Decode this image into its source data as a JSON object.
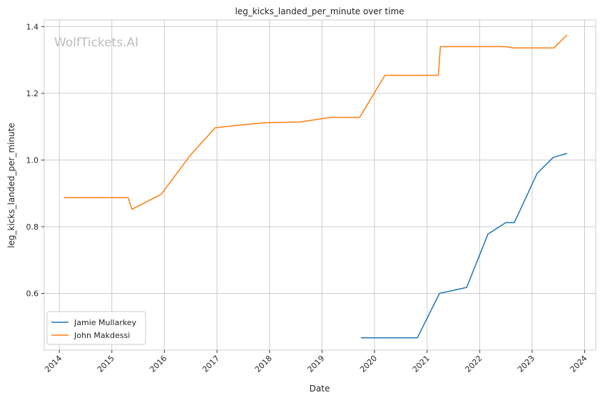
{
  "chart_data": {
    "type": "line",
    "title": "leg_kicks_landed_per_minute over time",
    "xlabel": "Date",
    "ylabel": "leg_kicks_landed_per_minute",
    "watermark": "WolfTickets.AI",
    "x_ticks": [
      "2014",
      "2015",
      "2016",
      "2017",
      "2018",
      "2019",
      "2020",
      "2021",
      "2022",
      "2023",
      "2024"
    ],
    "y_ticks": [
      "0.6",
      "0.8",
      "1.0",
      "1.2",
      "1.4"
    ],
    "xlim": [
      "2013-09-18",
      "2024-03-18"
    ],
    "ylim": [
      0.43,
      1.42
    ],
    "grid": true,
    "legend_position": "lower-left",
    "series": [
      {
        "name": "Jamie Mullarkey",
        "color": "#1f77b4",
        "points": [
          [
            "2019-09-28",
            0.467
          ],
          [
            "2020-10-25",
            0.467
          ],
          [
            "2021-03-28",
            0.6
          ],
          [
            "2021-10-03",
            0.618
          ],
          [
            "2022-02-28",
            0.778
          ],
          [
            "2022-07-01",
            0.812
          ],
          [
            "2022-08-30",
            0.812
          ],
          [
            "2023-02-05",
            0.96
          ],
          [
            "2023-05-28",
            1.008
          ],
          [
            "2023-09-01",
            1.02
          ]
        ]
      },
      {
        "name": "John Makdessi",
        "color": "#ff7f0e",
        "points": [
          [
            "2014-02-01",
            0.887
          ],
          [
            "2015-04-25",
            0.887
          ],
          [
            "2015-05-20",
            0.852
          ],
          [
            "2015-12-10",
            0.897
          ],
          [
            "2016-07-01",
            1.015
          ],
          [
            "2016-12-20",
            1.097
          ],
          [
            "2017-08-01",
            1.107
          ],
          [
            "2017-12-10",
            1.112
          ],
          [
            "2018-08-01",
            1.114
          ],
          [
            "2019-03-01",
            1.128
          ],
          [
            "2019-09-20",
            1.128
          ],
          [
            "2020-03-14",
            1.254
          ],
          [
            "2021-03-20",
            1.254
          ],
          [
            "2021-04-03",
            1.34
          ],
          [
            "2022-07-01",
            1.34
          ],
          [
            "2022-08-25",
            1.336
          ],
          [
            "2023-06-01",
            1.336
          ],
          [
            "2023-09-01",
            1.375
          ]
        ]
      }
    ]
  }
}
